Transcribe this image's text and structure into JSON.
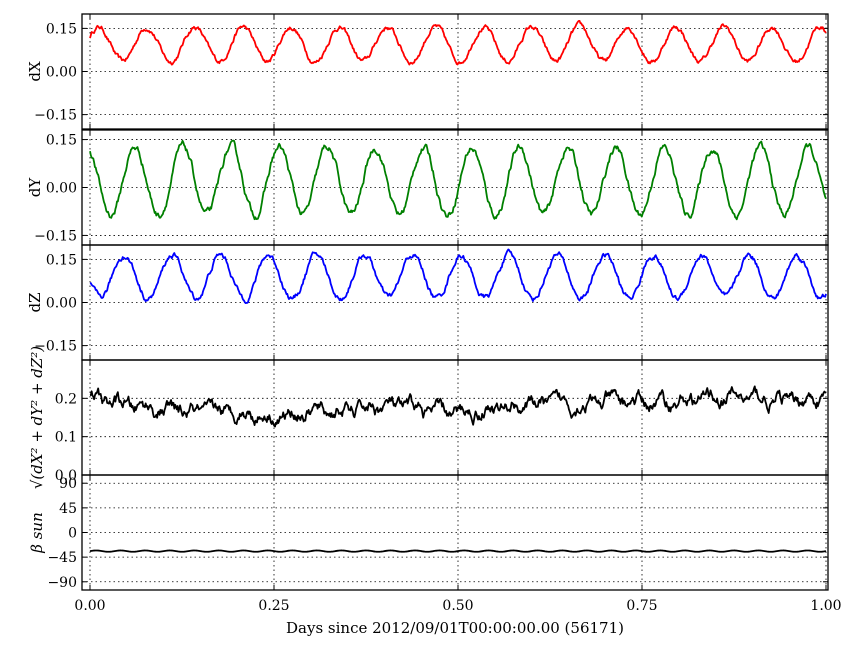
{
  "chart_data": {
    "type": "line",
    "xlabel": "Days since 2012/09/01T00:00:00.00 (56171)",
    "x_ticks": [
      "0.00",
      "0.25",
      "0.50",
      "0.75",
      "1.00"
    ],
    "xlim": [
      0.0,
      1.0
    ],
    "grid": true,
    "panels": [
      {
        "id": "dx",
        "ylabel": "dX",
        "ylabel_math": false,
        "ylim": [
          -0.2,
          0.2
        ],
        "y_tick_values": [
          0.15,
          0.0,
          -0.15
        ],
        "y_tick_labels": [
          "0.15",
          "0.00",
          "−0.15"
        ],
        "color": "#ff0000",
        "series": {
          "mean": 0.095,
          "amplitude": 0.06,
          "cycles": 15.3,
          "phase": 0.45,
          "noise": 0.006
        }
      },
      {
        "id": "dy",
        "ylabel": "dY",
        "ylabel_math": false,
        "ylim": [
          -0.18,
          0.18
        ],
        "y_tick_values": [
          0.15,
          0.0,
          -0.15
        ],
        "y_tick_labels": [
          "0.15",
          "0.00",
          "−0.15"
        ],
        "color": "#008000",
        "series": {
          "mean": 0.02,
          "amplitude": 0.105,
          "cycles": 15.3,
          "phase": 2.0,
          "noise": 0.008
        }
      },
      {
        "id": "dz",
        "ylabel": "dZ",
        "ylabel_math": false,
        "ylim": [
          -0.2,
          0.2
        ],
        "y_tick_values": [
          0.15,
          0.0,
          -0.15
        ],
        "y_tick_labels": [
          "0.15",
          "0.00",
          "−0.15"
        ],
        "color": "#0000ff",
        "series": {
          "mean": 0.09,
          "amplitude": 0.075,
          "cycles": 15.3,
          "phase": 3.4,
          "noise": 0.007
        }
      },
      {
        "id": "norm",
        "ylabel": "√(dX² + dY² + dZ²)",
        "ylabel_math": true,
        "ylim": [
          0.0,
          0.3
        ],
        "y_tick_values": [
          0.2,
          0.1,
          0.0
        ],
        "y_tick_labels": [
          "0.2",
          "0.1",
          "0.0"
        ],
        "color": "#000000",
        "series": {
          "anchors_x": [
            0.0,
            0.05,
            0.1,
            0.15,
            0.2,
            0.25,
            0.3,
            0.35,
            0.4,
            0.45,
            0.5,
            0.55,
            0.6,
            0.65,
            0.7,
            0.75,
            0.8,
            0.85,
            0.9,
            0.95,
            1.0
          ],
          "anchors_y": [
            0.2,
            0.18,
            0.17,
            0.16,
            0.165,
            0.155,
            0.165,
            0.165,
            0.18,
            0.17,
            0.16,
            0.175,
            0.185,
            0.185,
            0.19,
            0.19,
            0.19,
            0.205,
            0.2,
            0.19,
            0.205
          ],
          "noise": 0.008
        }
      },
      {
        "id": "beta",
        "ylabel": "β sun",
        "ylabel_math": true,
        "ylim": [
          -105,
          105
        ],
        "y_tick_values": [
          90,
          45,
          0,
          -45,
          -90
        ],
        "y_tick_labels": [
          "90",
          "45",
          "0",
          "−45",
          "−90"
        ],
        "color": "#000000",
        "series": {
          "mean": -34,
          "amplitude": 1.2,
          "cycles": 30,
          "phase": 0,
          "noise": 0
        }
      }
    ]
  }
}
